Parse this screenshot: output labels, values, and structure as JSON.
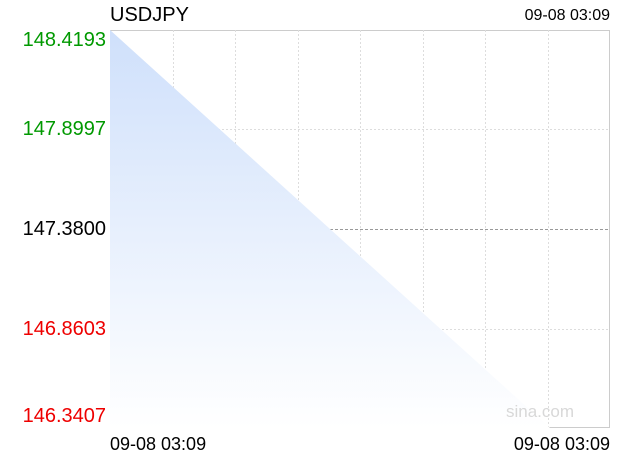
{
  "chart_data": {
    "type": "area",
    "title": "USDJPY",
    "timestamp": "09-08 03:09",
    "x_labels": [
      "09-08 03:09",
      "09-08 03:09"
    ],
    "y_ticks": [
      "148.4193",
      "147.8997",
      "147.3800",
      "146.8603",
      "146.3407"
    ],
    "ylim": [
      146.3407,
      148.4193
    ],
    "reference_price": 147.38,
    "series": [
      {
        "values": [
          148.4193,
          146.3407
        ]
      }
    ],
    "grid": true,
    "colors": {
      "above": "#009900",
      "reference": "#000000",
      "below": "#ee0000",
      "fill_top": "#cfe0fb",
      "grid": "#dddddd"
    }
  },
  "watermark": "sina.com"
}
